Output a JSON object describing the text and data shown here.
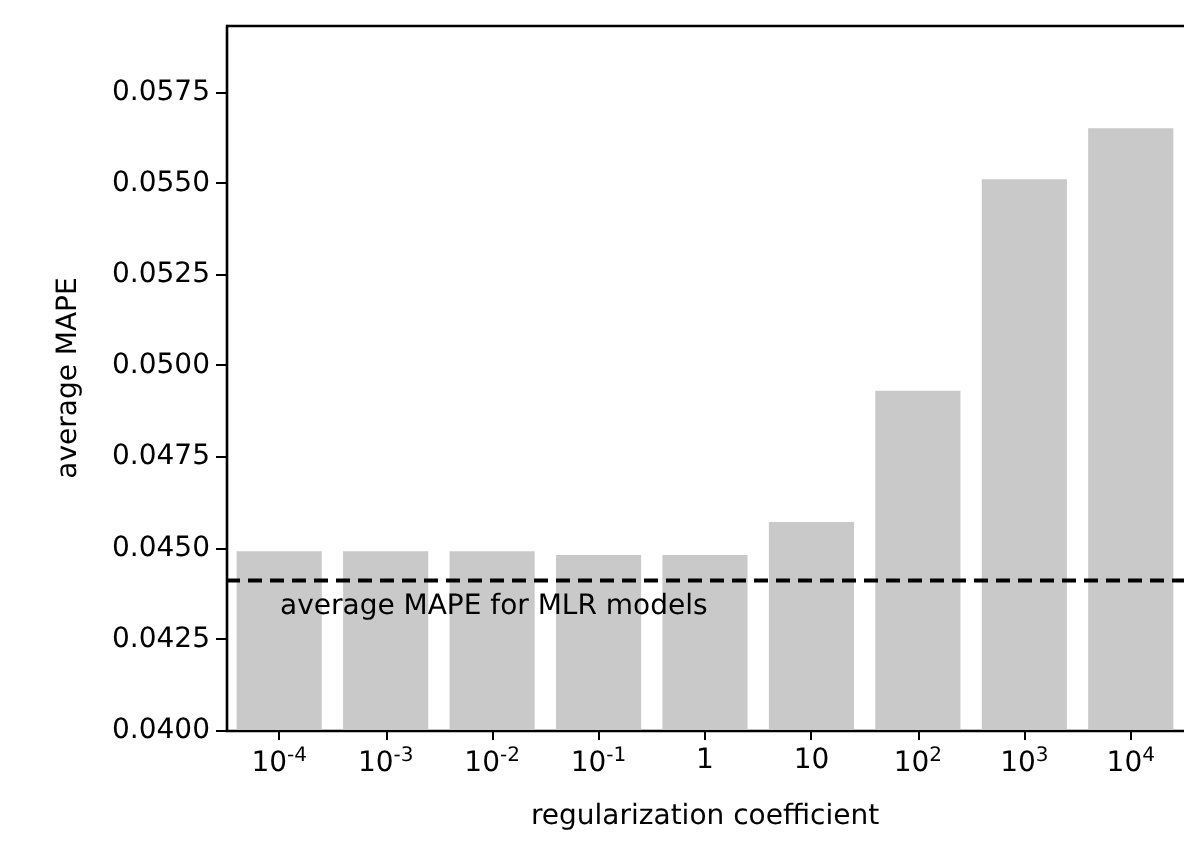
{
  "chart_data": {
    "type": "bar",
    "xlabel": "regularization coefficient",
    "ylabel": "average MAPE",
    "categories": [
      "10$^{-4}$",
      "10$^{-3}$",
      "10$^{-2}$",
      "10$^{-1}$",
      "1",
      "10",
      "10$^{2}$",
      "10$^{3}$",
      "10$^{4}$"
    ],
    "values": [
      0.0449,
      0.0449,
      0.0449,
      0.0448,
      0.0448,
      0.0457,
      0.0493,
      0.0551,
      0.0565
    ],
    "color": "#c8c9c8",
    "ylim": [
      0.04,
      0.0593
    ],
    "yticks": [
      {
        "value": 0.04,
        "label": "0.0400"
      },
      {
        "value": 0.0425,
        "label": "0.0425"
      },
      {
        "value": 0.045,
        "label": "0.0450"
      },
      {
        "value": 0.0475,
        "label": "0.0475"
      },
      {
        "value": 0.05,
        "label": "0.0500"
      },
      {
        "value": 0.0525,
        "label": "0.0525"
      },
      {
        "value": 0.055,
        "label": "0.0550"
      },
      {
        "value": 0.0575,
        "label": "0.0575"
      }
    ],
    "ref_lines": [
      {
        "axis": "y",
        "value": 0.0441,
        "label": "average MAPE for MLR models",
        "color": "#000000",
        "line_style": "dashed"
      }
    ],
    "grid": false
  }
}
